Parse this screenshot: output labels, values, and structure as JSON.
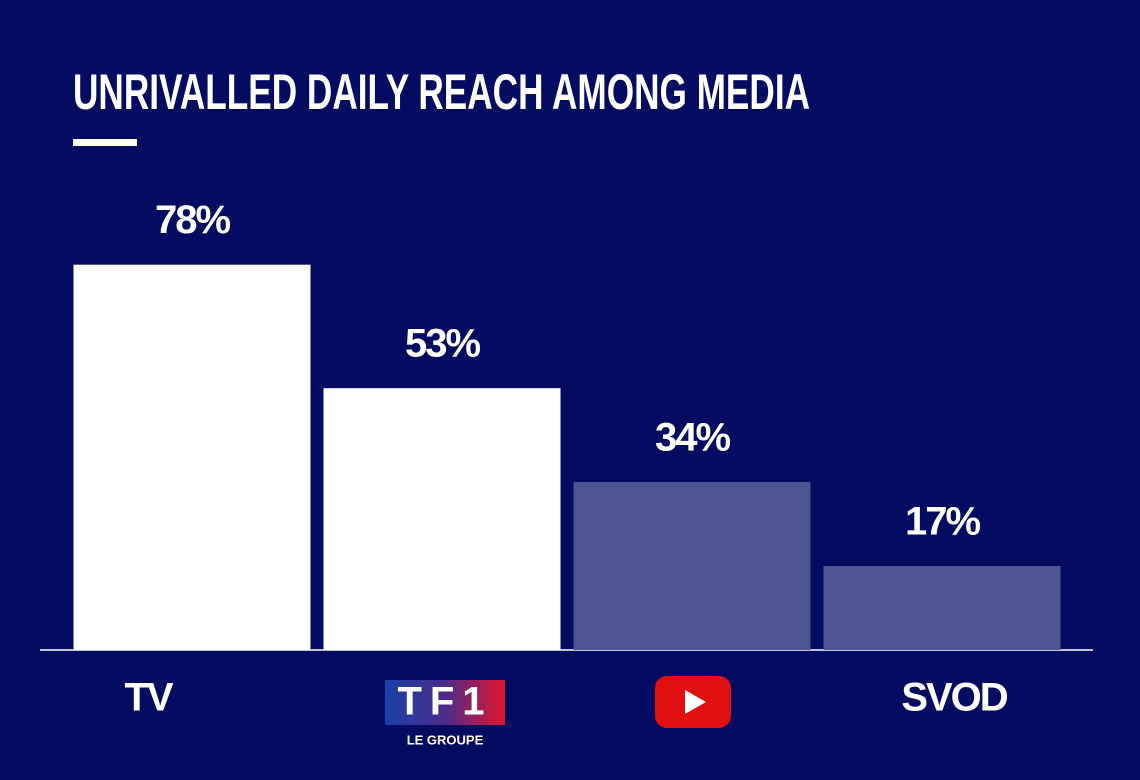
{
  "chart_data": {
    "type": "bar",
    "title": "UNRIVALLED DAILY REACH AMONG MEDIA",
    "categories": [
      "TV",
      "TF1",
      null,
      "SVOD"
    ],
    "category_sublabels": [
      null,
      "LE GROUPE",
      null,
      null
    ],
    "values": [
      78,
      53,
      34,
      17
    ],
    "value_labels": [
      "78%",
      "53%",
      "34%",
      "17%"
    ],
    "colors": [
      "#ffffff",
      "#ffffff",
      "#4f5593",
      "#4f5593"
    ],
    "ylim": [
      0,
      100
    ]
  }
}
